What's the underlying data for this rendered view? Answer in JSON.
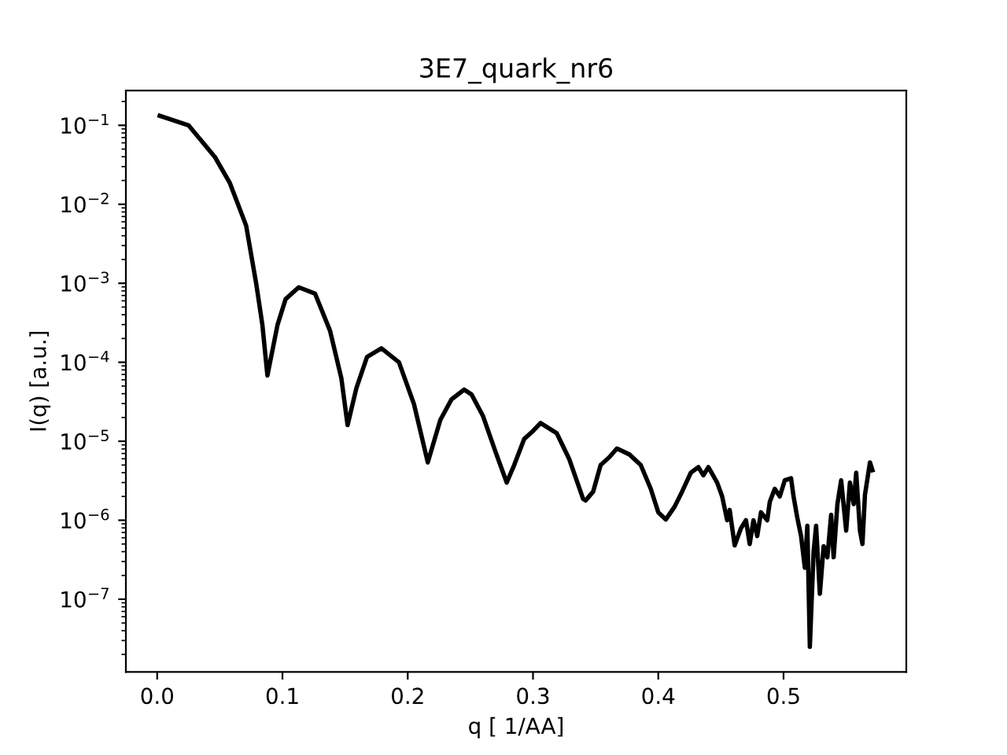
{
  "chart_data": {
    "type": "line",
    "title": "3E7_quark_nr6",
    "xlabel": "q [ 1/AA]",
    "ylabel": "I(q) [a.u.]",
    "log": "y",
    "grid": false,
    "legend": false,
    "marker": "none",
    "line_style": "solid",
    "xlim": [
      -0.025,
      0.598
    ],
    "ylim": [
      1.2e-08,
      0.275
    ],
    "xticks": [
      {
        "value": 0,
        "label": "0.0"
      },
      {
        "value": 0.1,
        "label": "0.1"
      },
      {
        "value": 0.2,
        "label": "0.2"
      },
      {
        "value": 0.3,
        "label": "0.3"
      },
      {
        "value": 0.4,
        "label": "0.4"
      },
      {
        "value": 0.5,
        "label": "0.5"
      }
    ],
    "yticks": [
      {
        "value": 1e-07,
        "label": "10$^{−7}$"
      },
      {
        "value": 1e-06,
        "label": "10$^{−6}$"
      },
      {
        "value": 1e-05,
        "label": "10$^{−5}$"
      },
      {
        "value": 0.0001,
        "label": "10$^{−4}$"
      },
      {
        "value": 0.001,
        "label": "10$^{−3}$"
      },
      {
        "value": 0.01,
        "label": "10$^{−2}$"
      },
      {
        "value": 0.1,
        "label": "10$^{−1}$"
      }
    ],
    "series": [
      {
        "color": "#000000",
        "x": [
          0.002,
          0.025,
          0.046,
          0.058,
          0.071,
          0.079,
          0.084,
          0.088,
          0.096,
          0.1025,
          0.113,
          0.126,
          0.138,
          0.147,
          0.152,
          0.159,
          0.1675,
          0.179,
          0.193,
          0.205,
          0.216,
          0.226,
          0.235,
          0.245,
          0.251,
          0.26,
          0.27,
          0.279,
          0.285,
          0.293,
          0.3,
          0.306,
          0.319,
          0.329,
          0.34,
          0.342,
          0.348,
          0.354,
          0.361,
          0.367,
          0.377,
          0.386,
          0.394,
          0.4,
          0.406,
          0.413,
          0.419,
          0.426,
          0.432,
          0.436,
          0.44,
          0.447,
          0.451,
          0.455,
          0.457,
          0.461,
          0.466,
          0.47,
          0.473,
          0.476,
          0.479,
          0.482,
          0.487,
          0.489,
          0.493,
          0.497,
          0.501,
          0.506,
          0.508,
          0.511,
          0.514,
          0.517,
          0.519,
          0.521,
          0.524,
          0.526,
          0.529,
          0.532,
          0.535,
          0.538,
          0.54,
          0.543,
          0.546,
          0.55,
          0.553,
          0.556,
          0.558,
          0.561,
          0.563,
          0.565,
          0.569,
          0.571
        ],
        "values": [
          0.132,
          0.1,
          0.0398,
          0.0186,
          0.00537,
          0.001,
          0.000295,
          6.8e-05,
          0.000295,
          0.00063,
          0.00089,
          0.00074,
          0.00025,
          6.3e-05,
          1.6e-05,
          4.7e-05,
          0.000117,
          0.00015,
          0.0001,
          2.95e-05,
          5.4e-06,
          1.86e-05,
          3.4e-05,
          4.5e-05,
          3.9e-05,
          2.1e-05,
          7.4e-06,
          3e-06,
          5e-06,
          1.07e-05,
          1.35e-05,
          1.7e-05,
          1.26e-05,
          5.9e-06,
          1.86e-06,
          1.78e-06,
          2.3e-06,
          5e-06,
          6.3e-06,
          8.1e-06,
          6.8e-06,
          5e-06,
          2.5e-06,
          1.26e-06,
          1.02e-06,
          1.48e-06,
          2.3e-06,
          4e-06,
          4.7e-06,
          3.7e-06,
          4.7e-06,
          3e-06,
          2e-06,
          1e-06,
          1.35e-06,
          4.8e-07,
          7.9e-07,
          1e-06,
          5e-07,
          1e-06,
          6.3e-07,
          1.26e-06,
          1e-06,
          1.7e-06,
          2.5e-06,
          2e-06,
          3.2e-06,
          3.4e-06,
          2e-06,
          1.07e-06,
          6.3e-07,
          2.5e-07,
          8.5e-07,
          2.5e-08,
          4e-07,
          8.5e-07,
          1.17e-07,
          4.7e-07,
          3.4e-07,
          1.17e-06,
          3.4e-07,
          1.6e-06,
          3.2e-06,
          7.4e-07,
          3e-06,
          1.6e-06,
          4e-06,
          7.4e-07,
          5e-07,
          2.1e-06,
          5.4e-06,
          4.3e-06
        ]
      }
    ]
  }
}
